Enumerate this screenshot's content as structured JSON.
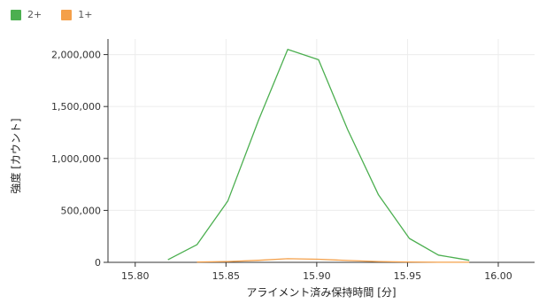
{
  "chart_data": {
    "type": "line",
    "title": "",
    "xlabel": "アライメント済み保持時間 [分]",
    "ylabel": "強度 [カウント]",
    "xlim": [
      15.785,
      16.02
    ],
    "ylim": [
      0,
      2150000
    ],
    "grid": true,
    "legend_position": "top-left",
    "x_ticks": [
      15.8,
      15.85,
      15.9,
      15.95,
      16.0
    ],
    "x_tick_labels": [
      "15.80",
      "15.85",
      "15.90",
      "15.95",
      "16.00"
    ],
    "y_ticks": [
      0,
      500000,
      1000000,
      1500000,
      2000000
    ],
    "y_tick_labels": [
      "0",
      "500,000",
      "1,000,000",
      "1,500,000",
      "2,000,000"
    ],
    "series": [
      {
        "name": "2+",
        "color": "#4caf50",
        "x": [
          15.818,
          15.834,
          15.851,
          15.868,
          15.884,
          15.901,
          15.917,
          15.934,
          15.951,
          15.967,
          15.984
        ],
        "y": [
          25000,
          170000,
          590000,
          1370000,
          2050000,
          1950000,
          1280000,
          650000,
          230000,
          70000,
          20000
        ]
      },
      {
        "name": "1+",
        "color": "#f4a04a",
        "x": [
          15.834,
          15.851,
          15.868,
          15.884,
          15.901,
          15.917,
          15.934,
          15.951,
          15.967,
          15.984
        ],
        "y": [
          3000,
          8000,
          20000,
          35000,
          30000,
          18000,
          8000,
          3000,
          1000,
          500
        ]
      }
    ]
  }
}
